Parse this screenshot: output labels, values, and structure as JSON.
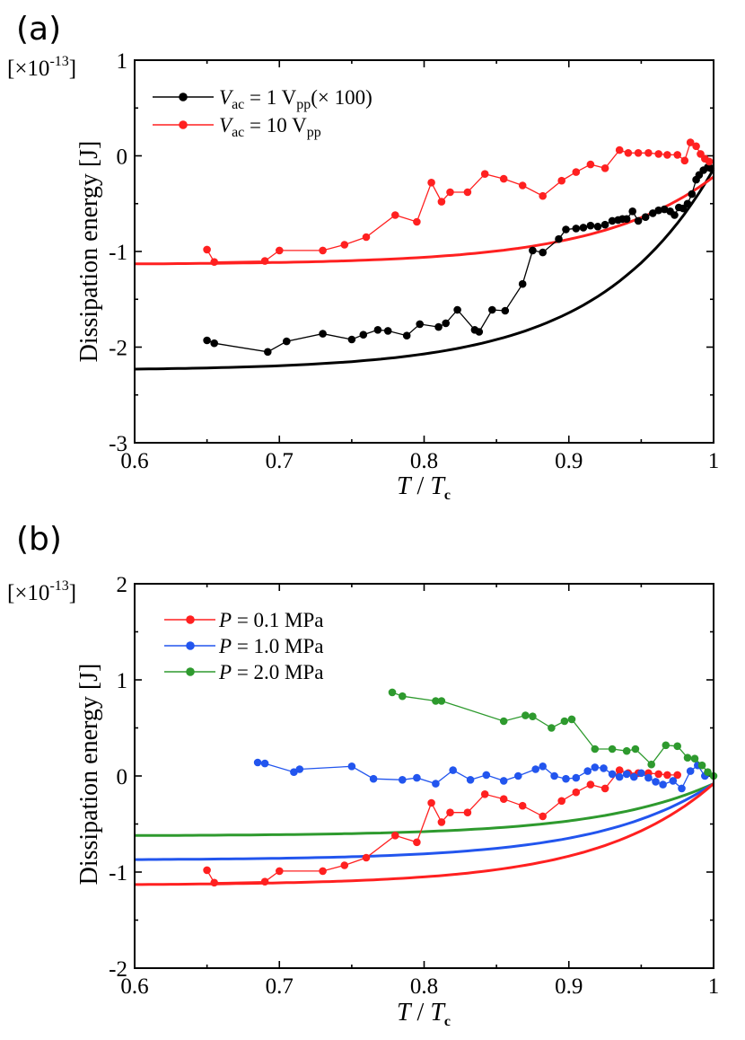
{
  "chart_data": [
    {
      "type": "line",
      "panel_label": "(a)",
      "scale_label": "[×10",
      "scale_exponent": "-13",
      "scale_close": "]",
      "xlabel": "T / Tc",
      "xlabel_parts": {
        "t": "T",
        "slash": " / ",
        "tc": "T",
        "tc_sub": "c"
      },
      "ylabel": "Dissipation energy [J]",
      "xlim": [
        0.6,
        1.0
      ],
      "ylim": [
        -3,
        1
      ],
      "x_ticks": [
        0.6,
        0.7,
        0.8,
        0.9,
        1.0
      ],
      "x_tick_labels": [
        "0.6",
        "0.7",
        "0.8",
        "0.9",
        "1"
      ],
      "y_ticks": [
        -3,
        -2,
        -1,
        0,
        1
      ],
      "y_tick_labels": [
        "-3",
        "-2",
        "-1",
        "0",
        "1"
      ],
      "legend_position": "top-left",
      "series": [
        {
          "name": "Vac = 1 Vpp(×100)",
          "legend": {
            "var": "V",
            "var_sub": "ac",
            "mid": " = 1 V",
            "unit_sub": "pp",
            "tail": "(× 100)"
          },
          "color": "#000000",
          "x": [
            0.65,
            0.655,
            0.692,
            0.705,
            0.73,
            0.75,
            0.758,
            0.768,
            0.775,
            0.788,
            0.797,
            0.81,
            0.815,
            0.823,
            0.835,
            0.838,
            0.847,
            0.856,
            0.868,
            0.875,
            0.882,
            0.893,
            0.898,
            0.905,
            0.91,
            0.915,
            0.92,
            0.925,
            0.93,
            0.934,
            0.937,
            0.94,
            0.944,
            0.948,
            0.953,
            0.958,
            0.962,
            0.966,
            0.97,
            0.973,
            0.976,
            0.979,
            0.982,
            0.985,
            0.988,
            0.99,
            0.993,
            0.996,
            0.998
          ],
          "y": [
            -1.93,
            -1.96,
            -2.05,
            -1.94,
            -1.86,
            -1.92,
            -1.87,
            -1.82,
            -1.83,
            -1.88,
            -1.76,
            -1.79,
            -1.75,
            -1.61,
            -1.82,
            -1.84,
            -1.61,
            -1.62,
            -1.34,
            -0.99,
            -1.01,
            -0.87,
            -0.77,
            -0.76,
            -0.75,
            -0.73,
            -0.74,
            -0.72,
            -0.68,
            -0.67,
            -0.66,
            -0.66,
            -0.58,
            -0.68,
            -0.64,
            -0.6,
            -0.57,
            -0.56,
            -0.58,
            -0.62,
            -0.54,
            -0.55,
            -0.5,
            -0.4,
            -0.25,
            -0.2,
            -0.15,
            -0.12,
            -0.13
          ]
        },
        {
          "name": "Vac = 10 Vpp",
          "legend": {
            "var": "V",
            "var_sub": "ac",
            "mid": " = 10 V",
            "unit_sub": "pp",
            "tail": ""
          },
          "color": "#ff2020",
          "x": [
            0.65,
            0.655,
            0.69,
            0.7,
            0.73,
            0.745,
            0.76,
            0.78,
            0.795,
            0.805,
            0.812,
            0.818,
            0.83,
            0.842,
            0.855,
            0.868,
            0.882,
            0.895,
            0.905,
            0.915,
            0.925,
            0.935,
            0.941,
            0.948,
            0.955,
            0.962,
            0.968,
            0.975,
            0.98,
            0.984,
            0.988,
            0.991,
            0.994,
            0.997
          ],
          "y": [
            -0.98,
            -1.11,
            -1.1,
            -0.99,
            -0.99,
            -0.93,
            -0.85,
            -0.62,
            -0.69,
            -0.28,
            -0.48,
            -0.38,
            -0.38,
            -0.19,
            -0.24,
            -0.31,
            -0.42,
            -0.26,
            -0.17,
            -0.09,
            -0.13,
            0.06,
            0.03,
            0.03,
            0.03,
            0.02,
            0.01,
            0.01,
            -0.05,
            0.14,
            0.1,
            0.02,
            -0.03,
            -0.06
          ]
        }
      ],
      "fit_curves": [
        {
          "name": "fit-black",
          "color": "#000000",
          "y0": -2.23,
          "y1": -0.14
        },
        {
          "name": "fit-red",
          "color": "#ff2020",
          "y0": -1.13,
          "y1": -0.22
        }
      ]
    },
    {
      "type": "line",
      "panel_label": "(b)",
      "scale_label": "[×10",
      "scale_exponent": "-13",
      "scale_close": "]",
      "xlabel": "T / Tc",
      "xlabel_parts": {
        "t": "T",
        "slash": " / ",
        "tc": "T",
        "tc_sub": "c"
      },
      "ylabel": "Dissipation energy [J]",
      "xlim": [
        0.6,
        1.0
      ],
      "ylim": [
        -2,
        2
      ],
      "x_ticks": [
        0.6,
        0.7,
        0.8,
        0.9,
        1.0
      ],
      "x_tick_labels": [
        "0.6",
        "0.7",
        "0.8",
        "0.9",
        "1"
      ],
      "y_ticks": [
        -2,
        -1,
        0,
        1,
        2
      ],
      "y_tick_labels": [
        "-2",
        "-1",
        "0",
        "1",
        "2"
      ],
      "legend_position": "top-left",
      "series": [
        {
          "name": "P = 0.1 MPa",
          "legend": {
            "var": "P",
            "rest": " = 0.1 MPa"
          },
          "color": "#ff2020",
          "x": [
            0.65,
            0.655,
            0.69,
            0.7,
            0.73,
            0.745,
            0.76,
            0.78,
            0.795,
            0.805,
            0.812,
            0.818,
            0.83,
            0.842,
            0.855,
            0.868,
            0.882,
            0.895,
            0.905,
            0.915,
            0.925,
            0.935,
            0.941,
            0.948,
            0.955,
            0.962,
            0.968,
            0.975
          ],
          "y": [
            -0.98,
            -1.11,
            -1.1,
            -0.99,
            -0.99,
            -0.93,
            -0.85,
            -0.62,
            -0.69,
            -0.28,
            -0.48,
            -0.38,
            -0.38,
            -0.19,
            -0.24,
            -0.31,
            -0.42,
            -0.26,
            -0.17,
            -0.09,
            -0.13,
            0.06,
            0.03,
            0.03,
            0.03,
            0.02,
            0.01,
            0.01
          ]
        },
        {
          "name": "P = 1.0 MPa",
          "legend": {
            "var": "P",
            "rest": " = 1.0 MPa"
          },
          "color": "#2255ee",
          "x": [
            0.685,
            0.69,
            0.71,
            0.714,
            0.75,
            0.765,
            0.785,
            0.795,
            0.808,
            0.82,
            0.832,
            0.843,
            0.855,
            0.865,
            0.877,
            0.882,
            0.89,
            0.898,
            0.905,
            0.913,
            0.918,
            0.924,
            0.93,
            0.935,
            0.94,
            0.945,
            0.95,
            0.955,
            0.96,
            0.965,
            0.972,
            0.978,
            0.984,
            0.989,
            0.994
          ],
          "y": [
            0.14,
            0.13,
            0.04,
            0.07,
            0.1,
            -0.03,
            -0.04,
            -0.02,
            -0.08,
            0.06,
            -0.04,
            0.01,
            -0.05,
            0.0,
            0.07,
            0.1,
            0.0,
            -0.03,
            -0.02,
            0.05,
            0.09,
            0.08,
            0.02,
            -0.01,
            0.02,
            -0.01,
            0.03,
            -0.02,
            -0.06,
            -0.09,
            -0.05,
            -0.13,
            0.05,
            0.11,
            0.0
          ]
        },
        {
          "name": "P = 2.0 MPa",
          "legend": {
            "var": "P",
            "rest": " = 2.0 MPa"
          },
          "color": "#2e9a2e",
          "x": [
            0.778,
            0.785,
            0.808,
            0.812,
            0.855,
            0.87,
            0.875,
            0.888,
            0.897,
            0.902,
            0.918,
            0.93,
            0.94,
            0.946,
            0.957,
            0.967,
            0.975,
            0.982,
            0.987,
            0.992,
            0.996,
            1.0
          ],
          "y": [
            0.87,
            0.83,
            0.78,
            0.78,
            0.57,
            0.63,
            0.62,
            0.5,
            0.57,
            0.59,
            0.28,
            0.28,
            0.26,
            0.28,
            0.12,
            0.32,
            0.31,
            0.19,
            0.18,
            0.11,
            0.04,
            0.0
          ]
        }
      ],
      "fit_curves": [
        {
          "name": "fit-green",
          "color": "#2e9a2e",
          "y0": -0.62,
          "y1": -0.08
        },
        {
          "name": "fit-blue",
          "color": "#2255ee",
          "y0": -0.87,
          "y1": -0.08
        },
        {
          "name": "fit-red",
          "color": "#ff2020",
          "y0": -1.13,
          "y1": -0.08
        }
      ]
    }
  ]
}
